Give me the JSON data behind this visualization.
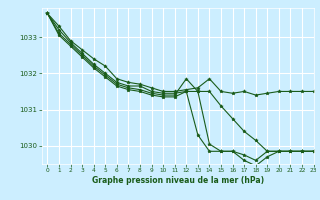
{
  "bg_color": "#cceeff",
  "grid_color": "#ffffff",
  "line_color": "#1a5c1a",
  "marker_color": "#1a5c1a",
  "xlabel": "Graphe pression niveau de la mer (hPa)",
  "xlabel_color": "#1a5c1a",
  "ylim": [
    1029.5,
    1033.8
  ],
  "xlim": [
    -0.5,
    23
  ],
  "yticks": [
    1030,
    1031,
    1032,
    1033
  ],
  "xticks": [
    0,
    1,
    2,
    3,
    4,
    5,
    6,
    7,
    8,
    9,
    10,
    11,
    12,
    13,
    14,
    15,
    16,
    17,
    18,
    19,
    20,
    21,
    22,
    23
  ],
  "series": [
    [
      1033.65,
      1033.3,
      1032.9,
      1032.65,
      1032.4,
      1032.2,
      1031.85,
      1031.75,
      1031.7,
      1031.6,
      1031.5,
      1031.5,
      1031.55,
      1031.6,
      1031.85,
      1031.5,
      1031.45,
      1031.5,
      1031.4,
      1031.45,
      1031.5,
      1031.5,
      1031.5,
      1031.5
    ],
    [
      1033.65,
      1033.2,
      1032.85,
      1032.55,
      1032.25,
      1032.0,
      1031.75,
      1031.65,
      1031.65,
      1031.5,
      1031.45,
      1031.45,
      1031.5,
      1031.5,
      1031.5,
      1031.1,
      1030.75,
      1030.4,
      1030.15,
      1029.85,
      1029.85,
      1029.85,
      1029.85,
      1029.85
    ],
    [
      1033.65,
      1033.1,
      1032.8,
      1032.5,
      1032.2,
      1031.95,
      1031.7,
      1031.6,
      1031.55,
      1031.45,
      1031.4,
      1031.4,
      1031.85,
      1031.5,
      1030.05,
      1029.85,
      1029.85,
      1029.75,
      1029.6,
      1029.85,
      1029.85,
      1029.85,
      1029.85,
      1029.85
    ],
    [
      1033.65,
      1033.05,
      1032.75,
      1032.45,
      1032.15,
      1031.9,
      1031.65,
      1031.55,
      1031.5,
      1031.4,
      1031.35,
      1031.35,
      1031.5,
      1030.3,
      1029.85,
      1029.85,
      1029.85,
      1029.6,
      1029.45,
      1029.7,
      1029.85,
      1029.85,
      1029.85,
      1029.85
    ]
  ]
}
